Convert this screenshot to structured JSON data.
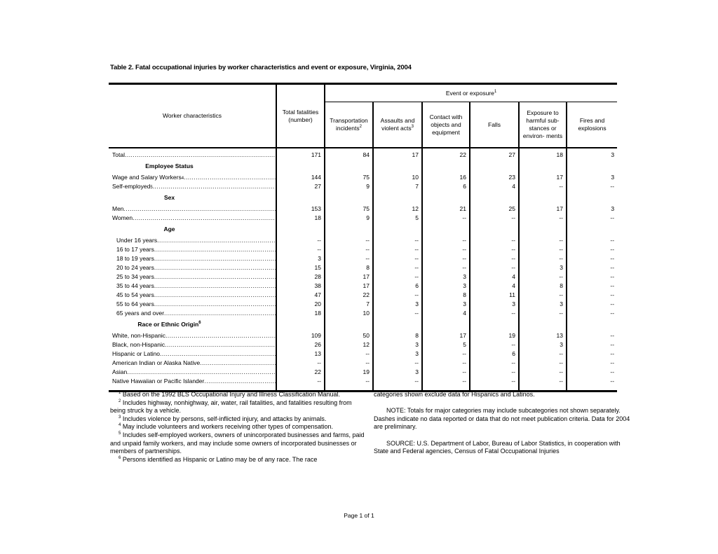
{
  "page": {
    "title": "Table 2. Fatal occupational injuries by worker characteristics and event or exposure, Virginia, 2004",
    "page_number": "Page 1 of 1"
  },
  "table": {
    "headers": {
      "worker": "Worker characteristics",
      "total": "Total fatalities (number)",
      "event_group": {
        "label": "Event or exposure",
        "sup": "1"
      },
      "events": [
        {
          "label": "Transportation incidents",
          "sup": "2"
        },
        {
          "label": "Assaults and violent acts",
          "sup": "3"
        },
        {
          "label": "Contact with objects and equipment",
          "sup": ""
        },
        {
          "label": "Falls",
          "sup": ""
        },
        {
          "label": "Exposure to harmful sub- stances or environ- ments",
          "sup": ""
        },
        {
          "label": "Fires and explosions",
          "sup": ""
        }
      ]
    },
    "no_data_symbol": "--",
    "rows": [
      {
        "type": "data",
        "label": "Total",
        "sup": "",
        "indent": 0,
        "values": [
          "171",
          "84",
          "17",
          "22",
          "27",
          "18",
          "3"
        ]
      },
      {
        "type": "group",
        "label": "Employee Status",
        "sup": ""
      },
      {
        "type": "data",
        "label": "Wage and Salary Workers",
        "sup": "4",
        "indent": 0,
        "values": [
          "144",
          "75",
          "10",
          "16",
          "23",
          "17",
          "3"
        ]
      },
      {
        "type": "data",
        "label": "Self-employed",
        "sup": "5",
        "indent": 0,
        "values": [
          "27",
          "9",
          "7",
          "6",
          "4",
          "--",
          "--"
        ]
      },
      {
        "type": "group",
        "label": "Sex",
        "sup": ""
      },
      {
        "type": "data",
        "label": "Men",
        "sup": "",
        "indent": 0,
        "values": [
          "153",
          "75",
          "12",
          "21",
          "25",
          "17",
          "3"
        ]
      },
      {
        "type": "data",
        "label": "Women",
        "sup": "",
        "indent": 0,
        "values": [
          "18",
          "9",
          "5",
          "--",
          "--",
          "--",
          "--"
        ]
      },
      {
        "type": "group",
        "label": "Age",
        "sup": ""
      },
      {
        "type": "data",
        "label": "Under 16 years",
        "sup": "",
        "indent": 1,
        "values": [
          "--",
          "--",
          "--",
          "--",
          "--",
          "--",
          "--"
        ]
      },
      {
        "type": "data",
        "label": "16 to 17 years",
        "sup": "",
        "indent": 1,
        "values": [
          "--",
          "--",
          "--",
          "--",
          "--",
          "--",
          "--"
        ]
      },
      {
        "type": "data",
        "label": "18 to 19 years",
        "sup": "",
        "indent": 1,
        "values": [
          "3",
          "--",
          "--",
          "--",
          "--",
          "--",
          "--"
        ]
      },
      {
        "type": "data",
        "label": "20 to 24 years",
        "sup": "",
        "indent": 1,
        "values": [
          "15",
          "8",
          "--",
          "--",
          "--",
          "3",
          "--"
        ]
      },
      {
        "type": "data",
        "label": "25 to 34 years",
        "sup": "",
        "indent": 1,
        "values": [
          "28",
          "17",
          "--",
          "3",
          "4",
          "--",
          "--"
        ]
      },
      {
        "type": "data",
        "label": "35 to 44 years",
        "sup": "",
        "indent": 1,
        "values": [
          "38",
          "17",
          "6",
          "3",
          "4",
          "8",
          "--"
        ]
      },
      {
        "type": "data",
        "label": "45 to 54 years",
        "sup": "",
        "indent": 1,
        "values": [
          "47",
          "22",
          "--",
          "8",
          "11",
          "--",
          "--"
        ]
      },
      {
        "type": "data",
        "label": "55 to 64 years",
        "sup": "",
        "indent": 1,
        "values": [
          "20",
          "7",
          "3",
          "3",
          "3",
          "3",
          "--"
        ]
      },
      {
        "type": "data",
        "label": "65 years and over",
        "sup": "",
        "indent": 1,
        "values": [
          "18",
          "10",
          "--",
          "4",
          "--",
          "--",
          "--"
        ]
      },
      {
        "type": "group",
        "label": "Race or Ethnic Origin",
        "sup": "6"
      },
      {
        "type": "data",
        "label": "White, non-Hispanic",
        "sup": "",
        "indent": 0,
        "values": [
          "109",
          "50",
          "8",
          "17",
          "19",
          "13",
          "--"
        ]
      },
      {
        "type": "data",
        "label": "Black, non-Hispanic",
        "sup": "",
        "indent": 0,
        "values": [
          "26",
          "12",
          "3",
          "5",
          "--",
          "3",
          "--"
        ]
      },
      {
        "type": "data",
        "label": "Hispanic or Latino",
        "sup": "",
        "indent": 0,
        "values": [
          "13",
          "--",
          "3",
          "--",
          "6",
          "--",
          "--"
        ]
      },
      {
        "type": "data",
        "label": "American Indian or Alaska Native",
        "sup": "",
        "indent": 0,
        "values": [
          "--",
          "--",
          "--",
          "--",
          "--",
          "--",
          "--"
        ]
      },
      {
        "type": "data",
        "label": "Asian",
        "sup": "",
        "indent": 0,
        "values": [
          "22",
          "19",
          "3",
          "--",
          "--",
          "--",
          "--"
        ]
      },
      {
        "type": "data",
        "label": "Native Hawaiian or Pacific Islander",
        "sup": "",
        "indent": 0,
        "values": [
          "--",
          "--",
          "--",
          "--",
          "--",
          "--",
          "--"
        ]
      }
    ]
  },
  "footnotes": {
    "left": [
      {
        "sup": "1",
        "text": "Based on the 1992 BLS Occupational Injury and Illness Classification Manual."
      },
      {
        "sup": "2",
        "text": "Includes highway, nonhighway, air, water, rail fatalities, and fatalities resulting from being struck by a vehicle."
      },
      {
        "sup": "3",
        "text": "Includes violence by persons, self-inflicted injury, and attacks by animals."
      },
      {
        "sup": "4",
        "text": "May include volunteers and workers receiving other types of compensation."
      },
      {
        "sup": "5",
        "text": "Includes self-employed workers, owners of unincorporated businesses and farms, paid and unpaid family workers, and may include some owners of incorporated businesses or members of partnerships."
      },
      {
        "sup": "6",
        "text": "Persons identified as Hispanic or Latino may be of any race.  The race"
      }
    ],
    "right": [
      {
        "text": "categories shown exclude data for Hispanics and Latinos."
      },
      {
        "text": "NOTE: Totals for major categories may include subcategories not shown separately.  Dashes indicate no data reported or data that do not meet publication criteria.  Data for 2004 are preliminary."
      },
      {
        "text": "SOURCE:  U.S. Department of Labor, Bureau of Labor Statistics, in cooperation with State and Federal agencies, Census of Fatal Occupational Injuries"
      }
    ]
  }
}
